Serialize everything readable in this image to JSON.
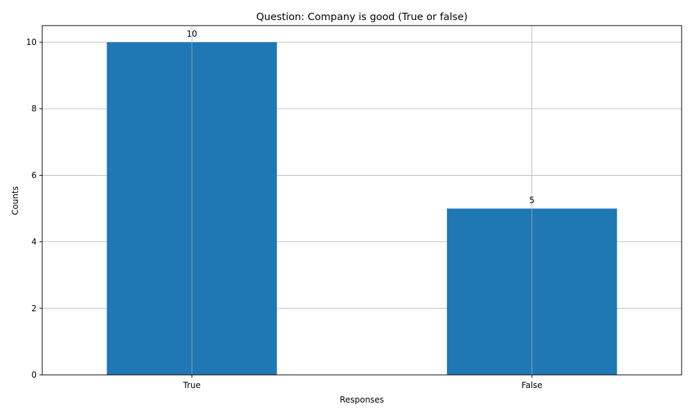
{
  "chart_data": {
    "type": "bar",
    "title": "Question: Company is good (True or false)",
    "xlabel": "Responses",
    "ylabel": "Counts",
    "categories": [
      "True",
      "False"
    ],
    "values": [
      10,
      5
    ],
    "data_labels": [
      "10",
      "5"
    ],
    "ylim": [
      0,
      10.5
    ],
    "yticks": [
      0,
      2,
      4,
      6,
      8,
      10
    ],
    "grid": true,
    "bar_color": "#1f77b4",
    "grid_color": "#b0b0b0"
  }
}
